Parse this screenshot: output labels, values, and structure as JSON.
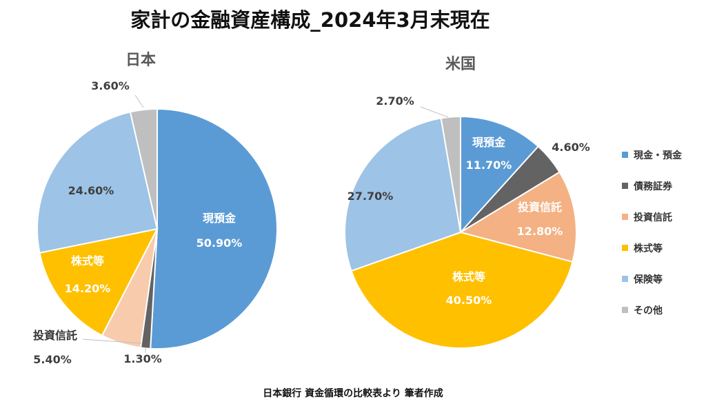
{
  "title": "家計の金融資産構成_2024年3月末現在",
  "footer": "日本銀行 資金循環の比較表より 筆者作成",
  "chart_data": [
    {
      "type": "pie",
      "title": "日本",
      "slices": [
        {
          "label": "現預金",
          "value": 50.9,
          "value_label": "50.90%",
          "color": "#5B9BD5",
          "show_label": true
        },
        {
          "label": "債務証券",
          "value": 1.3,
          "value_label": "1.30%",
          "color": "#636363",
          "show_label": false
        },
        {
          "label": "投資信託",
          "value": 5.4,
          "value_label": "5.40%",
          "color": "#F8CBAD",
          "show_label": true
        },
        {
          "label": "株式等",
          "value": 14.2,
          "value_label": "14.20%",
          "color": "#FFC000",
          "show_label": true
        },
        {
          "label": "保険等",
          "value": 24.6,
          "value_label": "24.60%",
          "color": "#9DC3E6",
          "show_label": false
        },
        {
          "label": "その他",
          "value": 3.6,
          "value_label": "3.60%",
          "color": "#BFBFBF",
          "show_label": false
        }
      ]
    },
    {
      "type": "pie",
      "title": "米国",
      "slices": [
        {
          "label": "現預金",
          "value": 11.7,
          "value_label": "11.70%",
          "color": "#5B9BD5",
          "show_label": true
        },
        {
          "label": "債務証券",
          "value": 4.6,
          "value_label": "4.60%",
          "color": "#636363",
          "show_label": false
        },
        {
          "label": "投資信託",
          "value": 12.8,
          "value_label": "12.80%",
          "color": "#F4B183",
          "show_label": true
        },
        {
          "label": "株式等",
          "value": 40.5,
          "value_label": "40.50%",
          "color": "#FFC000",
          "show_label": true
        },
        {
          "label": "保険等",
          "value": 27.7,
          "value_label": "27.70%",
          "color": "#9DC3E6",
          "show_label": false
        },
        {
          "label": "その他",
          "value": 2.7,
          "value_label": "2.70%",
          "color": "#BFBFBF",
          "show_label": false
        }
      ]
    }
  ],
  "legend": [
    {
      "label": "現金・預金",
      "color": "#5B9BD5"
    },
    {
      "label": "債務証券",
      "color": "#636363"
    },
    {
      "label": "投資信託",
      "color": "#F4B183"
    },
    {
      "label": "株式等",
      "color": "#FFC000"
    },
    {
      "label": "保険等",
      "color": "#9DC3E6"
    },
    {
      "label": "その他",
      "color": "#BFBFBF"
    }
  ]
}
